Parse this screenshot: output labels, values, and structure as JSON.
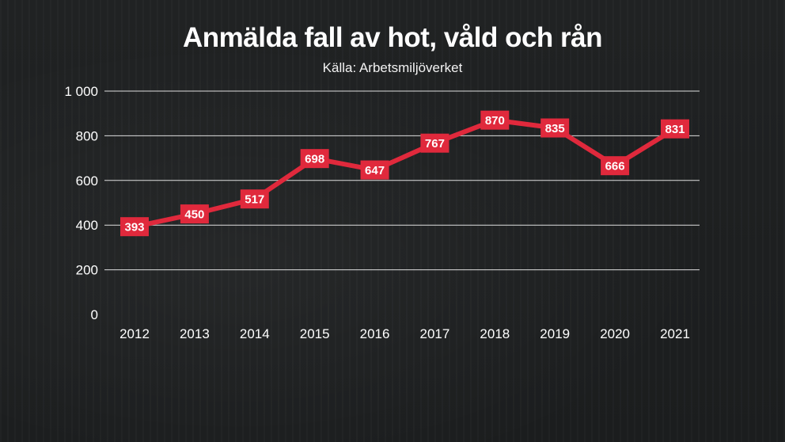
{
  "title": "Anmälda fall av hot, våld och rån",
  "subtitle": "Källa: Arbetsmiljöverket",
  "colors": {
    "background": "#1e2021",
    "line": "#e0293c",
    "text": "#ffffff",
    "grid": "#ffffff"
  },
  "chart_data": {
    "type": "line",
    "title": "Anmälda fall av hot, våld och rån",
    "subtitle": "Källa: Arbetsmiljöverket",
    "xlabel": "",
    "ylabel": "",
    "ylim": [
      0,
      1000
    ],
    "yticks": [
      0,
      200,
      400,
      600,
      800,
      1000
    ],
    "ytick_labels": [
      "0",
      "200",
      "400",
      "600",
      "800",
      "1 000"
    ],
    "grid": true,
    "categories": [
      "2012",
      "2013",
      "2014",
      "2015",
      "2016",
      "2017",
      "2018",
      "2019",
      "2020",
      "2021"
    ],
    "series": [
      {
        "values": [
          393,
          450,
          517,
          698,
          647,
          767,
          870,
          835,
          666,
          831
        ]
      }
    ],
    "data_labels": [
      "393",
      "450",
      "517",
      "698",
      "647",
      "767",
      "870",
      "835",
      "666",
      "831"
    ]
  }
}
